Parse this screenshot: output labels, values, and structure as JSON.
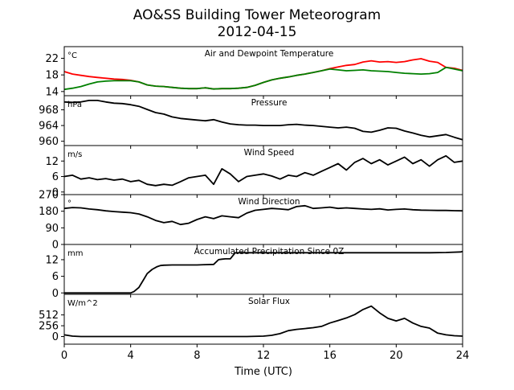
{
  "title": "AO&SS Building Tower Meteorogram",
  "subtitle": "2012-04-15",
  "xlabel": "Time (UTC)",
  "xticks": [
    "0",
    "4",
    "8",
    "12",
    "16",
    "20",
    "24"
  ],
  "chart_data": {
    "type": "line",
    "xlim": [
      0,
      24
    ],
    "x_ticks": [
      0,
      4,
      8,
      12,
      16,
      20,
      24
    ],
    "panels": [
      {
        "title": "Air and Dewpoint Temperature",
        "unit": "°C",
        "ylim": [
          13,
          24.8
        ],
        "yticks": [
          14,
          18,
          22
        ],
        "series": [
          {
            "color": "#ff0000",
            "x": [
              0,
              0.5,
              1,
              1.5,
              2,
              2.5,
              3,
              3.5,
              4,
              4.5,
              5,
              5.5,
              6,
              6.5,
              7,
              7.5,
              8,
              8.5,
              9,
              9.5,
              10,
              10.5,
              11,
              11.5,
              12,
              12.5,
              13,
              13.5,
              14,
              14.5,
              15,
              15.5,
              16,
              16.5,
              17,
              17.5,
              18,
              18.5,
              19,
              19.5,
              20,
              20.5,
              21,
              21.5,
              22,
              22.5,
              23,
              23.5,
              24
            ],
            "y": [
              18.8,
              18.2,
              17.9,
              17.6,
              17.4,
              17.2,
              17.0,
              16.9,
              16.7,
              16.3,
              15.6,
              15.3,
              15.2,
              15.0,
              14.8,
              14.7,
              14.7,
              14.9,
              14.6,
              14.7,
              14.7,
              14.8,
              15.0,
              15.5,
              16.2,
              16.8,
              17.2,
              17.5,
              17.9,
              18.2,
              18.6,
              19.0,
              19.5,
              19.9,
              20.3,
              20.5,
              21.1,
              21.4,
              21.1,
              21.2,
              21.0,
              21.2,
              21.6,
              21.9,
              21.3,
              21.0,
              19.8,
              19.6,
              19.1
            ]
          },
          {
            "color": "#008000",
            "x": [
              0,
              0.5,
              1,
              1.5,
              2,
              2.5,
              3,
              3.5,
              4,
              4.5,
              5,
              5.5,
              6,
              6.5,
              7,
              7.5,
              8,
              8.5,
              9,
              9.5,
              10,
              10.5,
              11,
              11.5,
              12,
              12.5,
              13,
              13.5,
              14,
              14.5,
              15,
              15.5,
              16,
              16.5,
              17,
              17.5,
              18,
              18.5,
              19,
              19.5,
              20,
              20.5,
              21,
              21.5,
              22,
              22.5,
              23,
              23.5,
              24
            ],
            "y": [
              14.5,
              14.8,
              15.2,
              15.8,
              16.3,
              16.5,
              16.6,
              16.6,
              16.6,
              16.3,
              15.6,
              15.3,
              15.2,
              15.0,
              14.8,
              14.7,
              14.7,
              14.9,
              14.6,
              14.7,
              14.7,
              14.8,
              15.0,
              15.5,
              16.2,
              16.8,
              17.2,
              17.5,
              17.9,
              18.2,
              18.6,
              19.0,
              19.4,
              19.2,
              19.0,
              19.1,
              19.2,
              19.0,
              18.9,
              18.8,
              18.6,
              18.4,
              18.3,
              18.2,
              18.3,
              18.6,
              19.8,
              19.4,
              19.0
            ]
          }
        ]
      },
      {
        "title": "Pressure",
        "unit": "hPa",
        "ylim": [
          958.9,
          971.6
        ],
        "yticks": [
          960,
          964,
          968
        ],
        "series": [
          {
            "color": "#000000",
            "x": [
              0,
              0.5,
              1,
              1.5,
              2,
              2.5,
              3,
              3.5,
              4,
              4.5,
              5,
              5.5,
              6,
              6.5,
              7,
              7.5,
              8,
              8.5,
              9,
              9.5,
              10,
              10.5,
              11,
              11.5,
              12,
              12.5,
              13,
              13.5,
              14,
              14.5,
              15,
              15.5,
              16,
              16.5,
              17,
              17.5,
              18,
              18.5,
              19,
              19.5,
              20,
              20.5,
              21,
              21.5,
              22,
              22.5,
              23,
              23.5,
              24
            ],
            "y": [
              970.0,
              969.9,
              970.0,
              970.4,
              970.4,
              970.0,
              969.7,
              969.6,
              969.3,
              968.9,
              968.1,
              967.3,
              966.9,
              966.2,
              965.8,
              965.6,
              965.4,
              965.2,
              965.5,
              964.9,
              964.4,
              964.2,
              964.1,
              964.1,
              964.0,
              964.0,
              964.0,
              964.2,
              964.3,
              964.1,
              964.0,
              963.8,
              963.6,
              963.4,
              963.6,
              963.3,
              962.5,
              962.3,
              962.8,
              963.4,
              963.3,
              962.6,
              962.1,
              961.5,
              961.1,
              961.4,
              961.7,
              961.0,
              960.4
            ]
          }
        ]
      },
      {
        "title": "Wind Speed",
        "unit": "m/s",
        "ylim": [
          -1,
          18
        ],
        "yticks": [
          0,
          6,
          12
        ],
        "series": [
          {
            "color": "#000000",
            "x": [
              0,
              0.5,
              1,
              1.5,
              2,
              2.5,
              3,
              3.5,
              4,
              4.5,
              5,
              5.5,
              6,
              6.5,
              7,
              7.5,
              8,
              8.5,
              9,
              9.5,
              10,
              10.5,
              11,
              11.5,
              12,
              12.5,
              13,
              13.5,
              14,
              14.5,
              15,
              15.5,
              16,
              16.5,
              17,
              17.5,
              18,
              18.5,
              19,
              19.5,
              20,
              20.5,
              21,
              21.5,
              22,
              22.5,
              23,
              23.5,
              24
            ],
            "y": [
              6.0,
              6.5,
              5.0,
              5.5,
              4.8,
              5.2,
              4.6,
              5.0,
              4.0,
              4.5,
              3.0,
              2.5,
              3.0,
              2.6,
              4.0,
              5.5,
              6.0,
              6.5,
              3.0,
              9.0,
              7.0,
              4.0,
              6.0,
              6.5,
              7.0,
              6.2,
              5.0,
              6.5,
              6.0,
              7.5,
              6.5,
              8.0,
              9.5,
              11.0,
              8.5,
              11.5,
              13.0,
              11.0,
              12.5,
              10.5,
              12.0,
              13.5,
              11.0,
              12.5,
              10.0,
              12.5,
              14.0,
              11.5,
              12.0
            ]
          }
        ]
      },
      {
        "title": "Wind Direction",
        "unit": "°",
        "ylim": [
          0,
          270
        ],
        "yticks": [
          0,
          90,
          180,
          270
        ],
        "series": [
          {
            "color": "#000000",
            "x": [
              0,
              0.5,
              1,
              1.5,
              2,
              2.5,
              3,
              3.5,
              4,
              4.5,
              5,
              5.5,
              6,
              6.5,
              7,
              7.5,
              8,
              8.5,
              9,
              9.5,
              10,
              10.5,
              11,
              11.5,
              12,
              12.5,
              13,
              13.5,
              14,
              14.5,
              15,
              15.5,
              16,
              16.5,
              17,
              17.5,
              18,
              18.5,
              19,
              19.5,
              20,
              20.5,
              21,
              21.5,
              22,
              22.5,
              23,
              23.5,
              24
            ],
            "y": [
              195,
              200,
              198,
              192,
              188,
              182,
              178,
              175,
              172,
              165,
              150,
              130,
              118,
              125,
              108,
              115,
              135,
              150,
              140,
              155,
              150,
              145,
              170,
              185,
              190,
              195,
              192,
              188,
              205,
              210,
              195,
              198,
              202,
              195,
              198,
              195,
              192,
              190,
              193,
              187,
              190,
              192,
              188,
              186,
              185,
              184,
              184,
              183,
              182
            ]
          }
        ]
      },
      {
        "title": "Accumulated Precipitation Since 0Z",
        "unit": "mm",
        "ylim": [
          -0.5,
          17.5
        ],
        "yticks": [
          0,
          6,
          12
        ],
        "series": [
          {
            "color": "#000000",
            "x": [
              0,
              3.0,
              4.0,
              4.2,
              4.5,
              4.8,
              5.0,
              5.3,
              5.6,
              5.8,
              6.0,
              6.5,
              7.0,
              7.5,
              8.0,
              8.5,
              9.0,
              9.3,
              9.5,
              9.7,
              10.0,
              10.3,
              11,
              12,
              13,
              14,
              15,
              16,
              17,
              18,
              19,
              20,
              21,
              22,
              23,
              23.9,
              24
            ],
            "y": [
              0,
              0,
              0,
              0.5,
              2.0,
              5.0,
              7.0,
              8.5,
              9.5,
              9.9,
              10.0,
              10.1,
              10.1,
              10.1,
              10.1,
              10.2,
              10.3,
              12.0,
              12.2,
              12.3,
              12.3,
              14.5,
              14.5,
              14.5,
              14.5,
              14.5,
              14.5,
              14.5,
              14.5,
              14.5,
              14.5,
              14.5,
              14.5,
              14.5,
              14.6,
              14.8,
              15.0
            ]
          }
        ]
      },
      {
        "title": "Solar Flux",
        "unit": "W/m^2",
        "ylim": [
          -180,
          1000
        ],
        "yticks": [
          0,
          256,
          512
        ],
        "series": [
          {
            "color": "#000000",
            "x": [
              0,
              0.5,
              1,
              2,
              3,
              4,
              5,
              6,
              7,
              8,
              9,
              10,
              11,
              12,
              12.5,
              13,
              13.5,
              14,
              14.5,
              15,
              15.5,
              16,
              16.5,
              17,
              17.5,
              18,
              18.5,
              19,
              19.5,
              20,
              20.5,
              21,
              21.5,
              22,
              22.5,
              23,
              23.5,
              24
            ],
            "y": [
              40,
              10,
              0,
              0,
              0,
              0,
              0,
              0,
              0,
              0,
              0,
              0,
              0,
              10,
              30,
              70,
              140,
              170,
              190,
              210,
              240,
              320,
              380,
              440,
              520,
              640,
              720,
              560,
              430,
              370,
              430,
              320,
              240,
              200,
              80,
              40,
              20,
              10
            ]
          }
        ]
      }
    ]
  }
}
